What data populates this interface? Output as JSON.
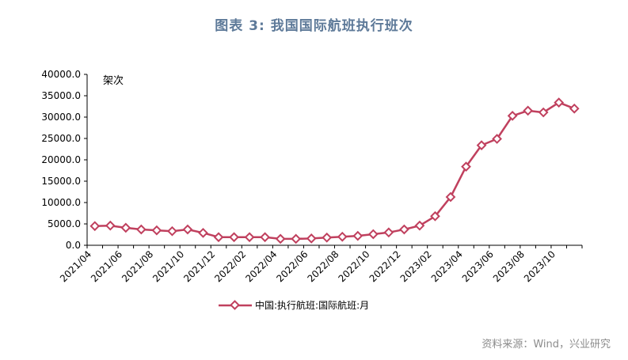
{
  "title": "图表 3:  我国国际航班执行班次",
  "source": "资料来源：Wind，兴业研究",
  "colors": {
    "series": "#c0405e",
    "title": "#5e7a99",
    "source": "#8c8c8c"
  },
  "chart_data": {
    "type": "line",
    "unit_label": "架次",
    "y_ticks": [
      "0.0",
      "5000.0",
      "10000.0",
      "15000.0",
      "20000.0",
      "25000.0",
      "30000.0",
      "35000.0",
      "40000.0"
    ],
    "ylim": [
      0,
      40000
    ],
    "x_tick_labels": [
      "2021/04",
      "2021/06",
      "2021/08",
      "2021/10",
      "2021/12",
      "2022/02",
      "2022/04",
      "2022/06",
      "2022/08",
      "2022/10",
      "2022/12",
      "2023/02",
      "2023/04",
      "2023/06",
      "2023/08",
      "2023/10"
    ],
    "x": [
      "2021/04",
      "2021/05",
      "2021/06",
      "2021/07",
      "2021/08",
      "2021/09",
      "2021/10",
      "2021/11",
      "2021/12",
      "2022/01",
      "2022/02",
      "2022/03",
      "2022/04",
      "2022/05",
      "2022/06",
      "2022/07",
      "2022/08",
      "2022/09",
      "2022/10",
      "2022/11",
      "2022/12",
      "2023/01",
      "2023/02",
      "2023/03",
      "2023/04",
      "2023/05",
      "2023/06",
      "2023/07",
      "2023/08",
      "2023/09",
      "2023/10",
      "2023/11"
    ],
    "series": [
      {
        "name": "中国:执行航班:国际航班:月",
        "values": [
          4500,
          4600,
          4100,
          3700,
          3500,
          3300,
          3700,
          2900,
          1900,
          1900,
          1900,
          1900,
          1500,
          1500,
          1600,
          1800,
          2000,
          2200,
          2600,
          3000,
          3700,
          4600,
          6800,
          11300,
          18400,
          23400,
          24900,
          30300,
          31500,
          31100,
          33400,
          32000
        ]
      }
    ],
    "grid": false,
    "legend_position": "bottom-center"
  }
}
